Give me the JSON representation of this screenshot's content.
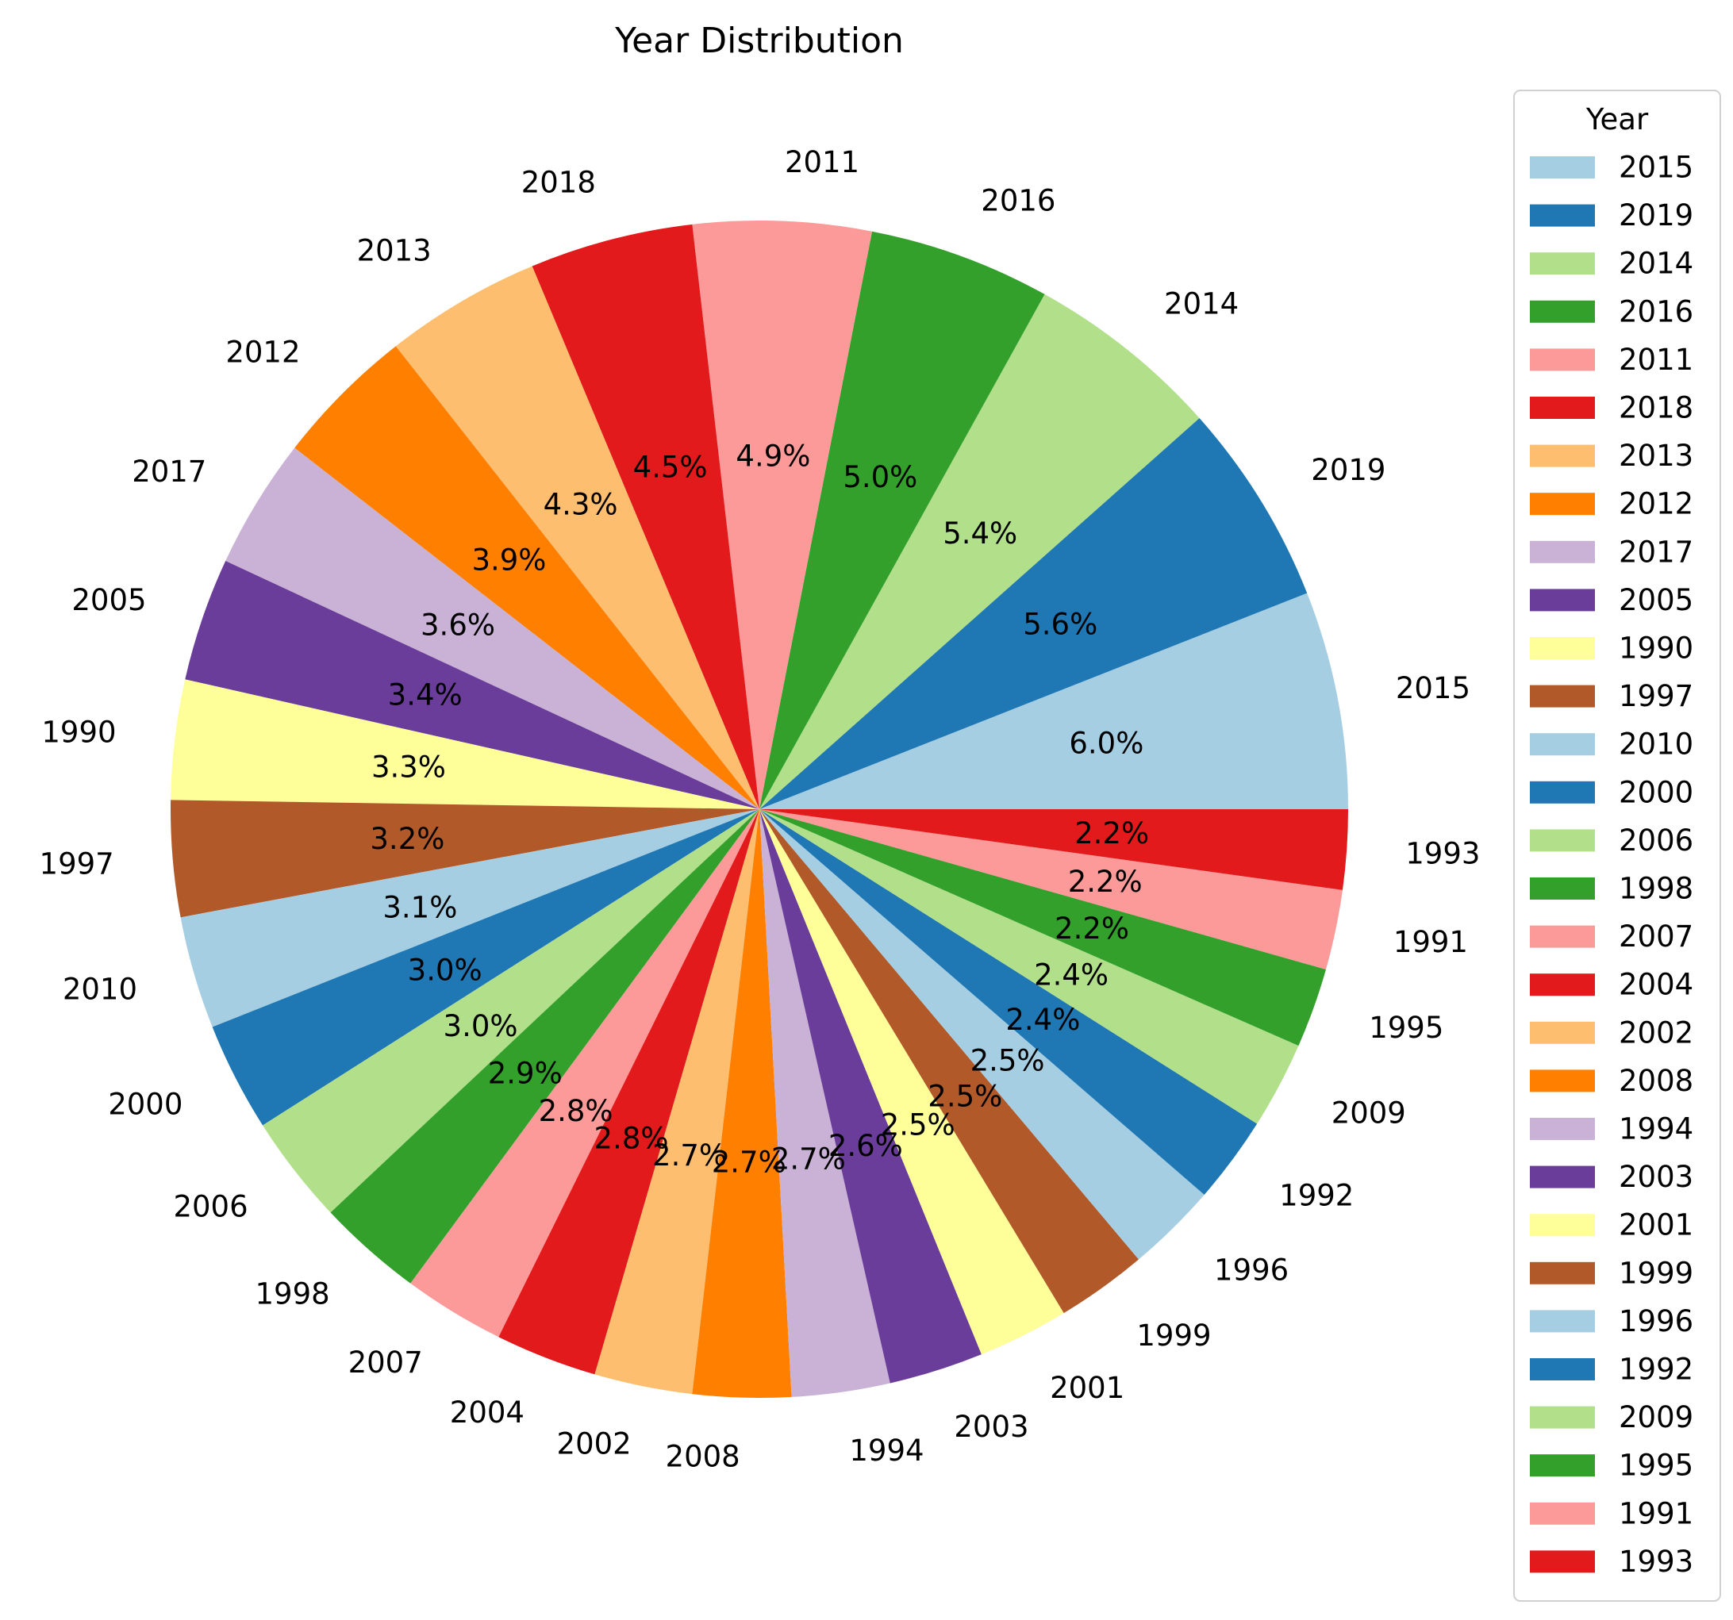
{
  "chart_data": {
    "type": "pie",
    "title": "Year Distribution",
    "legend": {
      "title": "Year",
      "placement": "right"
    },
    "slices": [
      {
        "label": "2015",
        "value": 6.0,
        "pct_label": "6.0%",
        "color": "#a6cee3"
      },
      {
        "label": "2019",
        "value": 5.6,
        "pct_label": "5.6%",
        "color": "#1f78b4"
      },
      {
        "label": "2014",
        "value": 5.4,
        "pct_label": "5.4%",
        "color": "#b2df8a"
      },
      {
        "label": "2016",
        "value": 5.0,
        "pct_label": "5.0%",
        "color": "#33a02c"
      },
      {
        "label": "2011",
        "value": 4.9,
        "pct_label": "4.9%",
        "color": "#fb9a99"
      },
      {
        "label": "2018",
        "value": 4.5,
        "pct_label": "4.5%",
        "color": "#e31a1c"
      },
      {
        "label": "2013",
        "value": 4.3,
        "pct_label": "4.3%",
        "color": "#fdbf6f"
      },
      {
        "label": "2012",
        "value": 3.9,
        "pct_label": "3.9%",
        "color": "#ff7f00"
      },
      {
        "label": "2017",
        "value": 3.6,
        "pct_label": "3.6%",
        "color": "#cab2d6"
      },
      {
        "label": "2005",
        "value": 3.4,
        "pct_label": "3.4%",
        "color": "#6a3d9a"
      },
      {
        "label": "1990",
        "value": 3.3,
        "pct_label": "3.3%",
        "color": "#ffff99"
      },
      {
        "label": "1997",
        "value": 3.2,
        "pct_label": "3.2%",
        "color": "#b15928"
      },
      {
        "label": "2010",
        "value": 3.1,
        "pct_label": "3.1%",
        "color": "#a6cee3"
      },
      {
        "label": "2000",
        "value": 3.0,
        "pct_label": "3.0%",
        "color": "#1f78b4"
      },
      {
        "label": "2006",
        "value": 3.0,
        "pct_label": "3.0%",
        "color": "#b2df8a"
      },
      {
        "label": "1998",
        "value": 2.9,
        "pct_label": "2.9%",
        "color": "#33a02c"
      },
      {
        "label": "2007",
        "value": 2.8,
        "pct_label": "2.8%",
        "color": "#fb9a99"
      },
      {
        "label": "2004",
        "value": 2.8,
        "pct_label": "2.8%",
        "color": "#e31a1c"
      },
      {
        "label": "2002",
        "value": 2.7,
        "pct_label": "2.7%",
        "color": "#fdbf6f"
      },
      {
        "label": "2008",
        "value": 2.7,
        "pct_label": "2.7%",
        "color": "#ff7f00"
      },
      {
        "label": "1994",
        "value": 2.7,
        "pct_label": "2.7%",
        "color": "#cab2d6"
      },
      {
        "label": "2003",
        "value": 2.6,
        "pct_label": "2.6%",
        "color": "#6a3d9a"
      },
      {
        "label": "2001",
        "value": 2.5,
        "pct_label": "2.5%",
        "color": "#ffff99"
      },
      {
        "label": "1999",
        "value": 2.5,
        "pct_label": "2.5%",
        "color": "#b15928"
      },
      {
        "label": "1996",
        "value": 2.5,
        "pct_label": "2.5%",
        "color": "#a6cee3"
      },
      {
        "label": "1992",
        "value": 2.4,
        "pct_label": "2.4%",
        "color": "#1f78b4"
      },
      {
        "label": "2009",
        "value": 2.4,
        "pct_label": "2.4%",
        "color": "#b2df8a"
      },
      {
        "label": "1995",
        "value": 2.2,
        "pct_label": "2.2%",
        "color": "#33a02c"
      },
      {
        "label": "1991",
        "value": 2.2,
        "pct_label": "2.2%",
        "color": "#fb9a99"
      },
      {
        "label": "1993",
        "value": 2.2,
        "pct_label": "2.2%",
        "color": "#e31a1c"
      }
    ]
  }
}
